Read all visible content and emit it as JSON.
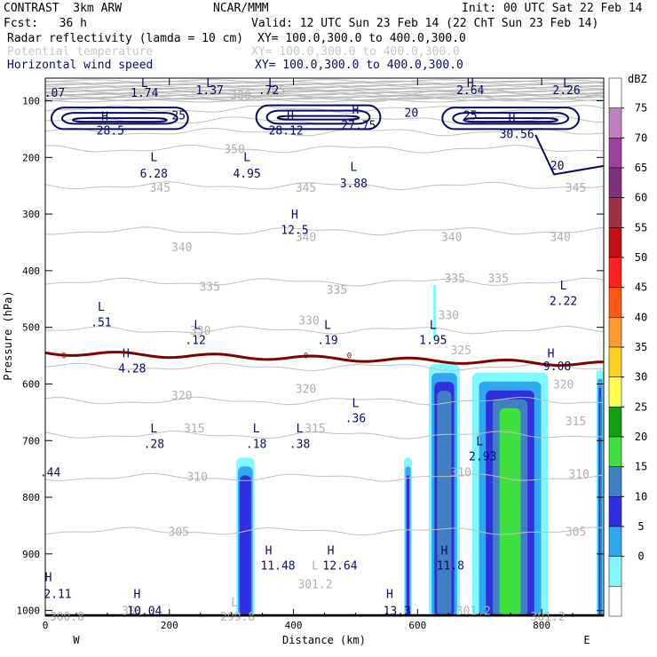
{
  "header": {
    "model": "CONTRAST  3km ARW",
    "org": "NCAR/MMM",
    "init": "Init: 00 UTC Sat 22 Feb 14",
    "fcst": "Fcst:   36 h",
    "valid": "Valid: 12 UTC Sun 23 Feb 14 (22 ChT Sun 23 Feb 14)",
    "fields": [
      {
        "name": "Radar reflectivity (lamda = 10 cm)",
        "xy": "XY= 100.0,300.0 to 400.0,300.0",
        "color": "#000000"
      },
      {
        "name": "Potential temperature",
        "xy": "XY= 100.0,300.0 to 400.0,300.0",
        "color": "#c8c8c8"
      },
      {
        "name": "Horizontal wind speed",
        "xy": "XY= 100.0,300.0 to 400.0,300.0",
        "color": "#0a0a64"
      }
    ]
  },
  "chart_data": {
    "type": "heatmap",
    "title": "Radar reflectivity (lamda = 10 cm)",
    "xlabel": "Distance (km)",
    "ylabel": "Pressure (hPa)",
    "xlim": [
      0,
      900
    ],
    "ylim": [
      1010,
      60
    ],
    "x_ticks": [
      0,
      200,
      400,
      600,
      800
    ],
    "y_ticks": [
      100,
      200,
      300,
      400,
      500,
      600,
      700,
      800,
      900,
      1000
    ],
    "x_end_labels": {
      "left": "W",
      "right": "E"
    },
    "colorbar": {
      "unit": "dBZ",
      "levels": [
        75,
        70,
        65,
        60,
        55,
        50,
        45,
        40,
        35,
        30,
        25,
        20,
        15,
        10,
        5,
        0
      ],
      "colors": [
        "#ffffff",
        "#c080c0",
        "#a040a0",
        "#803080",
        "#a03040",
        "#c01010",
        "#ff2020",
        "#ff5a14",
        "#ff9a30",
        "#ffd020",
        "#ffff50",
        "#10a010",
        "#40e040",
        "#4080c0",
        "#3030e0",
        "#30a8f0",
        "#80f8ff",
        "#ffffff"
      ]
    },
    "theta_contours": [
      {
        "label": "385",
        "p": 85
      },
      {
        "label": "380",
        "p": 95
      },
      {
        "label": "365",
        "p": 115
      },
      {
        "label": "360",
        "p": 135
      },
      {
        "label": "355",
        "p": 155
      },
      {
        "label": "350",
        "p": 185
      },
      {
        "label": "345",
        "p": 250
      },
      {
        "label": "340",
        "p": 330
      },
      {
        "label": "335",
        "p": 420
      },
      {
        "label": "330",
        "p": 505
      },
      {
        "label": "325",
        "p": 570
      },
      {
        "label": "320",
        "p": 630
      },
      {
        "label": "315",
        "p": 690
      },
      {
        "label": "310",
        "p": 765
      },
      {
        "label": "305",
        "p": 860
      }
    ],
    "freezing_level": {
      "label": "0",
      "p_start": 545,
      "p_end": 565
    },
    "theta_labels": [
      {
        "text": "385",
        "x": 370,
        "p": 80
      },
      {
        "text": "380",
        "x": 315,
        "p": 90
      },
      {
        "text": "350",
        "x": 305,
        "p": 185
      },
      {
        "text": "345",
        "x": 185,
        "p": 253
      },
      {
        "text": "345",
        "x": 420,
        "p": 253
      },
      {
        "text": "345",
        "x": 855,
        "p": 253
      },
      {
        "text": "340",
        "x": 220,
        "p": 358
      },
      {
        "text": "340",
        "x": 420,
        "p": 340
      },
      {
        "text": "340",
        "x": 655,
        "p": 340
      },
      {
        "text": "340",
        "x": 830,
        "p": 340
      },
      {
        "text": "335",
        "x": 265,
        "p": 428
      },
      {
        "text": "335",
        "x": 470,
        "p": 433
      },
      {
        "text": "335",
        "x": 660,
        "p": 413
      },
      {
        "text": "335",
        "x": 730,
        "p": 413
      },
      {
        "text": "330",
        "x": 250,
        "p": 505
      },
      {
        "text": "330",
        "x": 425,
        "p": 487
      },
      {
        "text": "330",
        "x": 650,
        "p": 478
      },
      {
        "text": "325",
        "x": 670,
        "p": 540
      },
      {
        "text": "320",
        "x": 220,
        "p": 620
      },
      {
        "text": "320",
        "x": 420,
        "p": 608
      },
      {
        "text": "320",
        "x": 835,
        "p": 600
      },
      {
        "text": "315",
        "x": 240,
        "p": 678
      },
      {
        "text": "315",
        "x": 435,
        "p": 678
      },
      {
        "text": "315",
        "x": 855,
        "p": 665
      },
      {
        "text": "310",
        "x": 245,
        "p": 763
      },
      {
        "text": "310",
        "x": 670,
        "p": 755
      },
      {
        "text": "310",
        "x": 860,
        "p": 758
      },
      {
        "text": "305",
        "x": 215,
        "p": 860
      },
      {
        "text": "305",
        "x": 855,
        "p": 860
      },
      {
        "text": "301.2",
        "x": 435,
        "p": 953
      },
      {
        "text": "301.2",
        "x": 690,
        "p": 1000
      },
      {
        "text": "301.2",
        "x": 810,
        "p": 1010
      },
      {
        "text": "300.8",
        "x": 35,
        "p": 1010
      },
      {
        "text": "299.8",
        "x": 310,
        "p": 1010
      },
      {
        "text": "301",
        "x": 140,
        "p": 1000
      },
      {
        "text": "L",
        "x": 435,
        "p": 920
      },
      {
        "text": "L",
        "x": 305,
        "p": 985
      }
    ],
    "wind_contours": [
      {
        "label": "25",
        "p": 125
      },
      {
        "label": "20",
        "p": 125
      }
    ],
    "wind_labels": [
      {
        "text": "L",
        "x": 160,
        "p": 68
      },
      {
        "text": "1.74",
        "x": 160,
        "p": 85
      },
      {
        "text": ".07",
        "x": 15,
        "p": 85
      },
      {
        "text": "L",
        "x": 265,
        "p": 68
      },
      {
        "text": "1.37",
        "x": 265,
        "p": 80
      },
      {
        "text": "L",
        "x": 365,
        "p": 68
      },
      {
        "text": ".72",
        "x": 360,
        "p": 80
      },
      {
        "text": "H",
        "x": 685,
        "p": 68
      },
      {
        "text": "2.64",
        "x": 685,
        "p": 80
      },
      {
        "text": "L",
        "x": 840,
        "p": 68
      },
      {
        "text": "2.26",
        "x": 840,
        "p": 80
      },
      {
        "text": "H",
        "x": 96,
        "p": 127
      },
      {
        "text": "28.5",
        "x": 105,
        "p": 152
      },
      {
        "text": "25",
        "x": 215,
        "p": 125
      },
      {
        "text": "H",
        "x": 395,
        "p": 127
      },
      {
        "text": "28.12",
        "x": 388,
        "p": 152
      },
      {
        "text": "H",
        "x": 500,
        "p": 115
      },
      {
        "text": "27.75",
        "x": 505,
        "p": 142
      },
      {
        "text": "20",
        "x": 590,
        "p": 120
      },
      {
        "text": "25",
        "x": 685,
        "p": 125
      },
      {
        "text": "H",
        "x": 752,
        "p": 130
      },
      {
        "text": "30.56",
        "x": 760,
        "p": 158
      },
      {
        "text": "20",
        "x": 825,
        "p": 214
      },
      {
        "text": "L",
        "x": 175,
        "p": 199
      },
      {
        "text": "6.28",
        "x": 175,
        "p": 228
      },
      {
        "text": "L",
        "x": 325,
        "p": 199
      },
      {
        "text": "4.95",
        "x": 325,
        "p": 228
      },
      {
        "text": "L",
        "x": 497,
        "p": 216
      },
      {
        "text": "3.88",
        "x": 497,
        "p": 245
      },
      {
        "text": "H",
        "x": 402,
        "p": 300
      },
      {
        "text": "12.5",
        "x": 402,
        "p": 327
      },
      {
        "text": "L",
        "x": 90,
        "p": 463
      },
      {
        "text": ".51",
        "x": 90,
        "p": 490
      },
      {
        "text": "L",
        "x": 835,
        "p": 425
      },
      {
        "text": "2.22",
        "x": 835,
        "p": 453
      },
      {
        "text": "L",
        "x": 245,
        "p": 495
      },
      {
        "text": ".12",
        "x": 242,
        "p": 522
      },
      {
        "text": "L",
        "x": 455,
        "p": 495
      },
      {
        "text": ".19",
        "x": 455,
        "p": 522
      },
      {
        "text": "L",
        "x": 625,
        "p": 495
      },
      {
        "text": "1.95",
        "x": 625,
        "p": 522
      },
      {
        "text": "H",
        "x": 130,
        "p": 545
      },
      {
        "text": "4.28",
        "x": 140,
        "p": 572
      },
      {
        "text": "H",
        "x": 815,
        "p": 545
      },
      {
        "text": "9.08",
        "x": 825,
        "p": 568
      },
      {
        "text": "L",
        "x": 500,
        "p": 633
      },
      {
        "text": ".36",
        "x": 500,
        "p": 660
      },
      {
        "text": "L",
        "x": 175,
        "p": 678
      },
      {
        "text": ".28",
        "x": 175,
        "p": 705
      },
      {
        "text": "L",
        "x": 340,
        "p": 678
      },
      {
        "text": ".18",
        "x": 340,
        "p": 705
      },
      {
        "text": "L",
        "x": 410,
        "p": 678
      },
      {
        "text": ".38",
        "x": 410,
        "p": 705
      },
      {
        "text": "L",
        "x": 700,
        "p": 700
      },
      {
        "text": "2.93",
        "x": 705,
        "p": 727
      },
      {
        "text": ".44",
        "x": 8,
        "p": 755
      },
      {
        "text": "H",
        "x": 360,
        "p": 893
      },
      {
        "text": "11.48",
        "x": 375,
        "p": 920
      },
      {
        "text": "H",
        "x": 460,
        "p": 893
      },
      {
        "text": "12.64",
        "x": 475,
        "p": 920
      },
      {
        "text": "H",
        "x": 643,
        "p": 893
      },
      {
        "text": "11.8",
        "x": 653,
        "p": 920
      },
      {
        "text": "H",
        "x": 5,
        "p": 940
      },
      {
        "text": "2.11",
        "x": 20,
        "p": 970
      },
      {
        "text": "H",
        "x": 148,
        "p": 970
      },
      {
        "text": "10.04",
        "x": 160,
        "p": 1000
      },
      {
        "text": "H",
        "x": 555,
        "p": 970
      },
      {
        "text": "13.3",
        "x": 567,
        "p": 1000
      }
    ],
    "reflectivity_cells": [
      {
        "x0": 308,
        "x1": 337,
        "p_top": 730,
        "p_bot": 1010,
        "max_dbz": 18
      },
      {
        "x0": 578,
        "x1": 591,
        "p_top": 730,
        "p_bot": 1010,
        "max_dbz": 15
      },
      {
        "x0": 618,
        "x1": 668,
        "p_top": 565,
        "p_bot": 1010,
        "max_dbz": 22
      },
      {
        "x0": 625,
        "x1": 630,
        "p_top": 425,
        "p_bot": 520,
        "max_dbz": 7
      },
      {
        "x0": 688,
        "x1": 810,
        "p_top": 580,
        "p_bot": 1010,
        "max_dbz": 30
      },
      {
        "x0": 888,
        "x1": 900,
        "p_top": 575,
        "p_bot": 1010,
        "max_dbz": 22
      }
    ]
  }
}
